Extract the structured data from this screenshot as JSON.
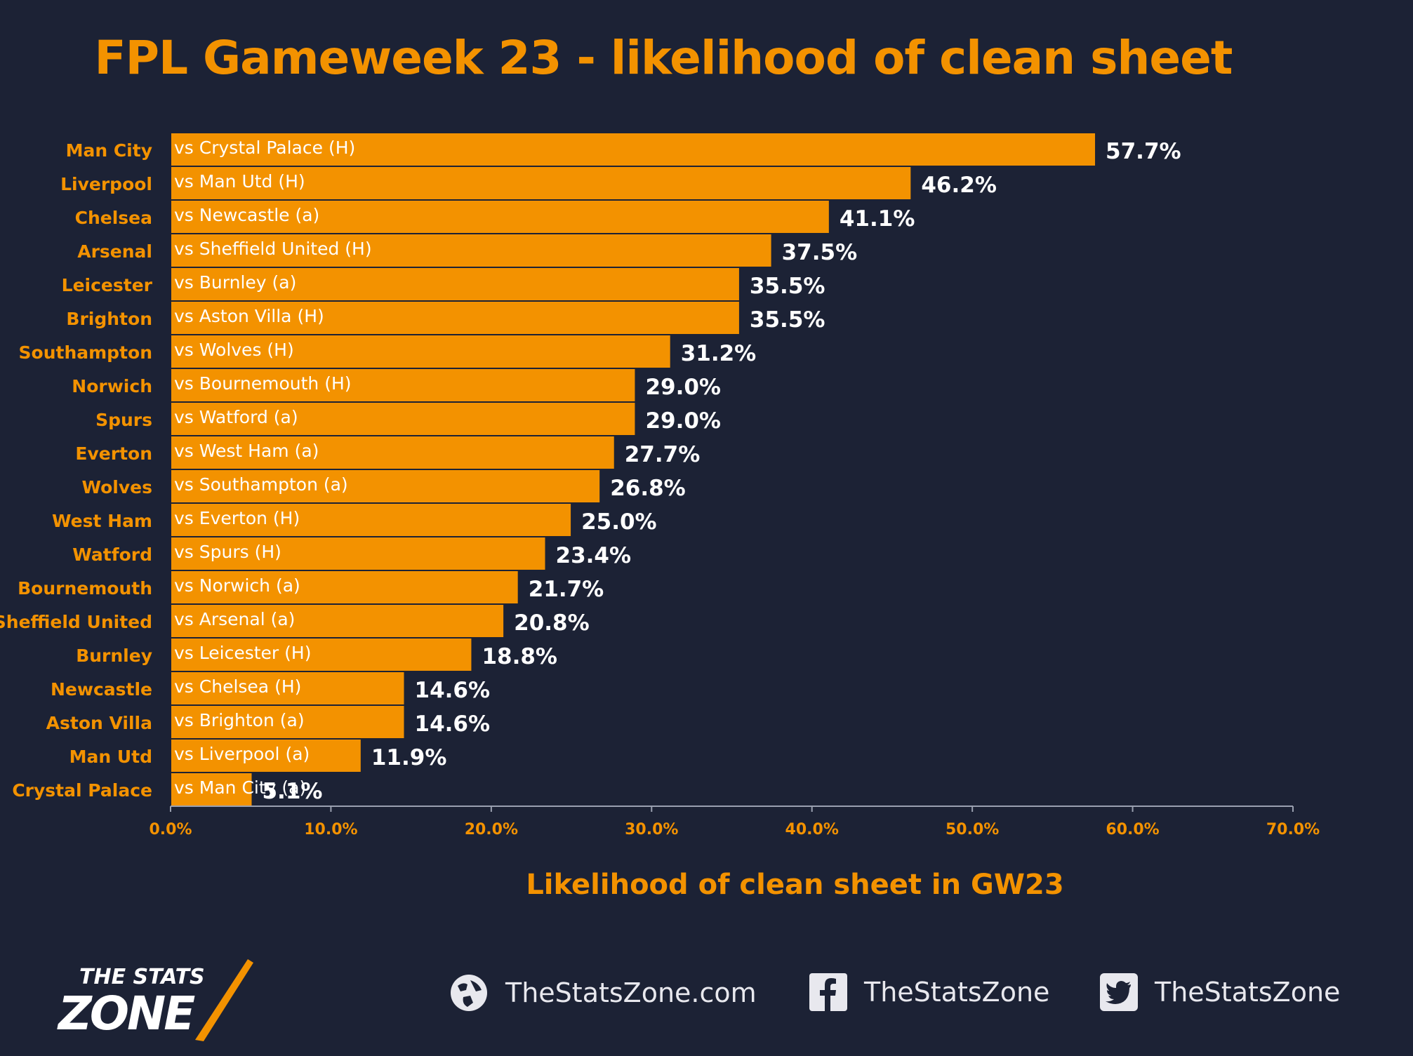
{
  "chart_data": {
    "type": "bar",
    "orientation": "horizontal",
    "title": "FPL Gameweek 23 - likelihood of clean sheet",
    "xlabel": "Likelihood of clean sheet in GW23",
    "ylabel": "",
    "xlim": [
      0,
      70
    ],
    "x_ticks": [
      "0.0%",
      "10.0%",
      "20.0%",
      "30.0%",
      "40.0%",
      "50.0%",
      "60.0%",
      "70.0%"
    ],
    "grid": false,
    "categories": [
      "Man City",
      "Liverpool",
      "Chelsea",
      "Arsenal",
      "Leicester",
      "Brighton",
      "Southampton",
      "Norwich",
      "Spurs",
      "Everton",
      "Wolves",
      "West Ham",
      "Watford",
      "Bournemouth",
      "Sheffield United",
      "Burnley",
      "Newcastle",
      "Aston Villa",
      "Man Utd",
      "Crystal Palace"
    ],
    "fixtures": [
      "vs Crystal Palace (H)",
      "vs Man Utd (H)",
      "vs Newcastle (a)",
      "vs Sheffield United (H)",
      "vs Burnley (a)",
      "vs Aston Villa (H)",
      "vs Wolves (H)",
      "vs Bournemouth (H)",
      "vs Watford (a)",
      "vs West Ham (a)",
      "vs Southampton (a)",
      "vs Everton (H)",
      "vs Spurs (H)",
      "vs Norwich (a)",
      "vs Arsenal (a)",
      "vs Leicester (H)",
      "vs Chelsea (H)",
      "vs Brighton (a)",
      "vs Liverpool (a)",
      "vs Man City (a)"
    ],
    "values": [
      57.7,
      46.2,
      41.1,
      37.5,
      35.5,
      35.5,
      31.2,
      29.0,
      29.0,
      27.7,
      26.8,
      25.0,
      23.4,
      21.7,
      20.8,
      18.8,
      14.6,
      14.6,
      11.9,
      5.1
    ],
    "value_labels": [
      "57.7%",
      "46.2%",
      "41.1%",
      "37.5%",
      "35.5%",
      "35.5%",
      "31.2%",
      "29.0%",
      "29.0%",
      "27.7%",
      "26.8%",
      "25.0%",
      "23.4%",
      "21.7%",
      "20.8%",
      "18.8%",
      "14.6%",
      "14.6%",
      "11.9%",
      "5.1%"
    ],
    "colors": {
      "bar": "#f39200",
      "background": "#1c2235",
      "labels": "#f39200",
      "values": "#ffffff"
    }
  },
  "footer": {
    "logo_text_top": "THE STATS",
    "logo_text_bottom": "ZONE",
    "website": "TheStatsZone.com",
    "facebook": "TheStatsZone",
    "twitter": "TheStatsZone",
    "icons": [
      "globe-icon",
      "facebook-icon",
      "twitter-icon"
    ]
  }
}
